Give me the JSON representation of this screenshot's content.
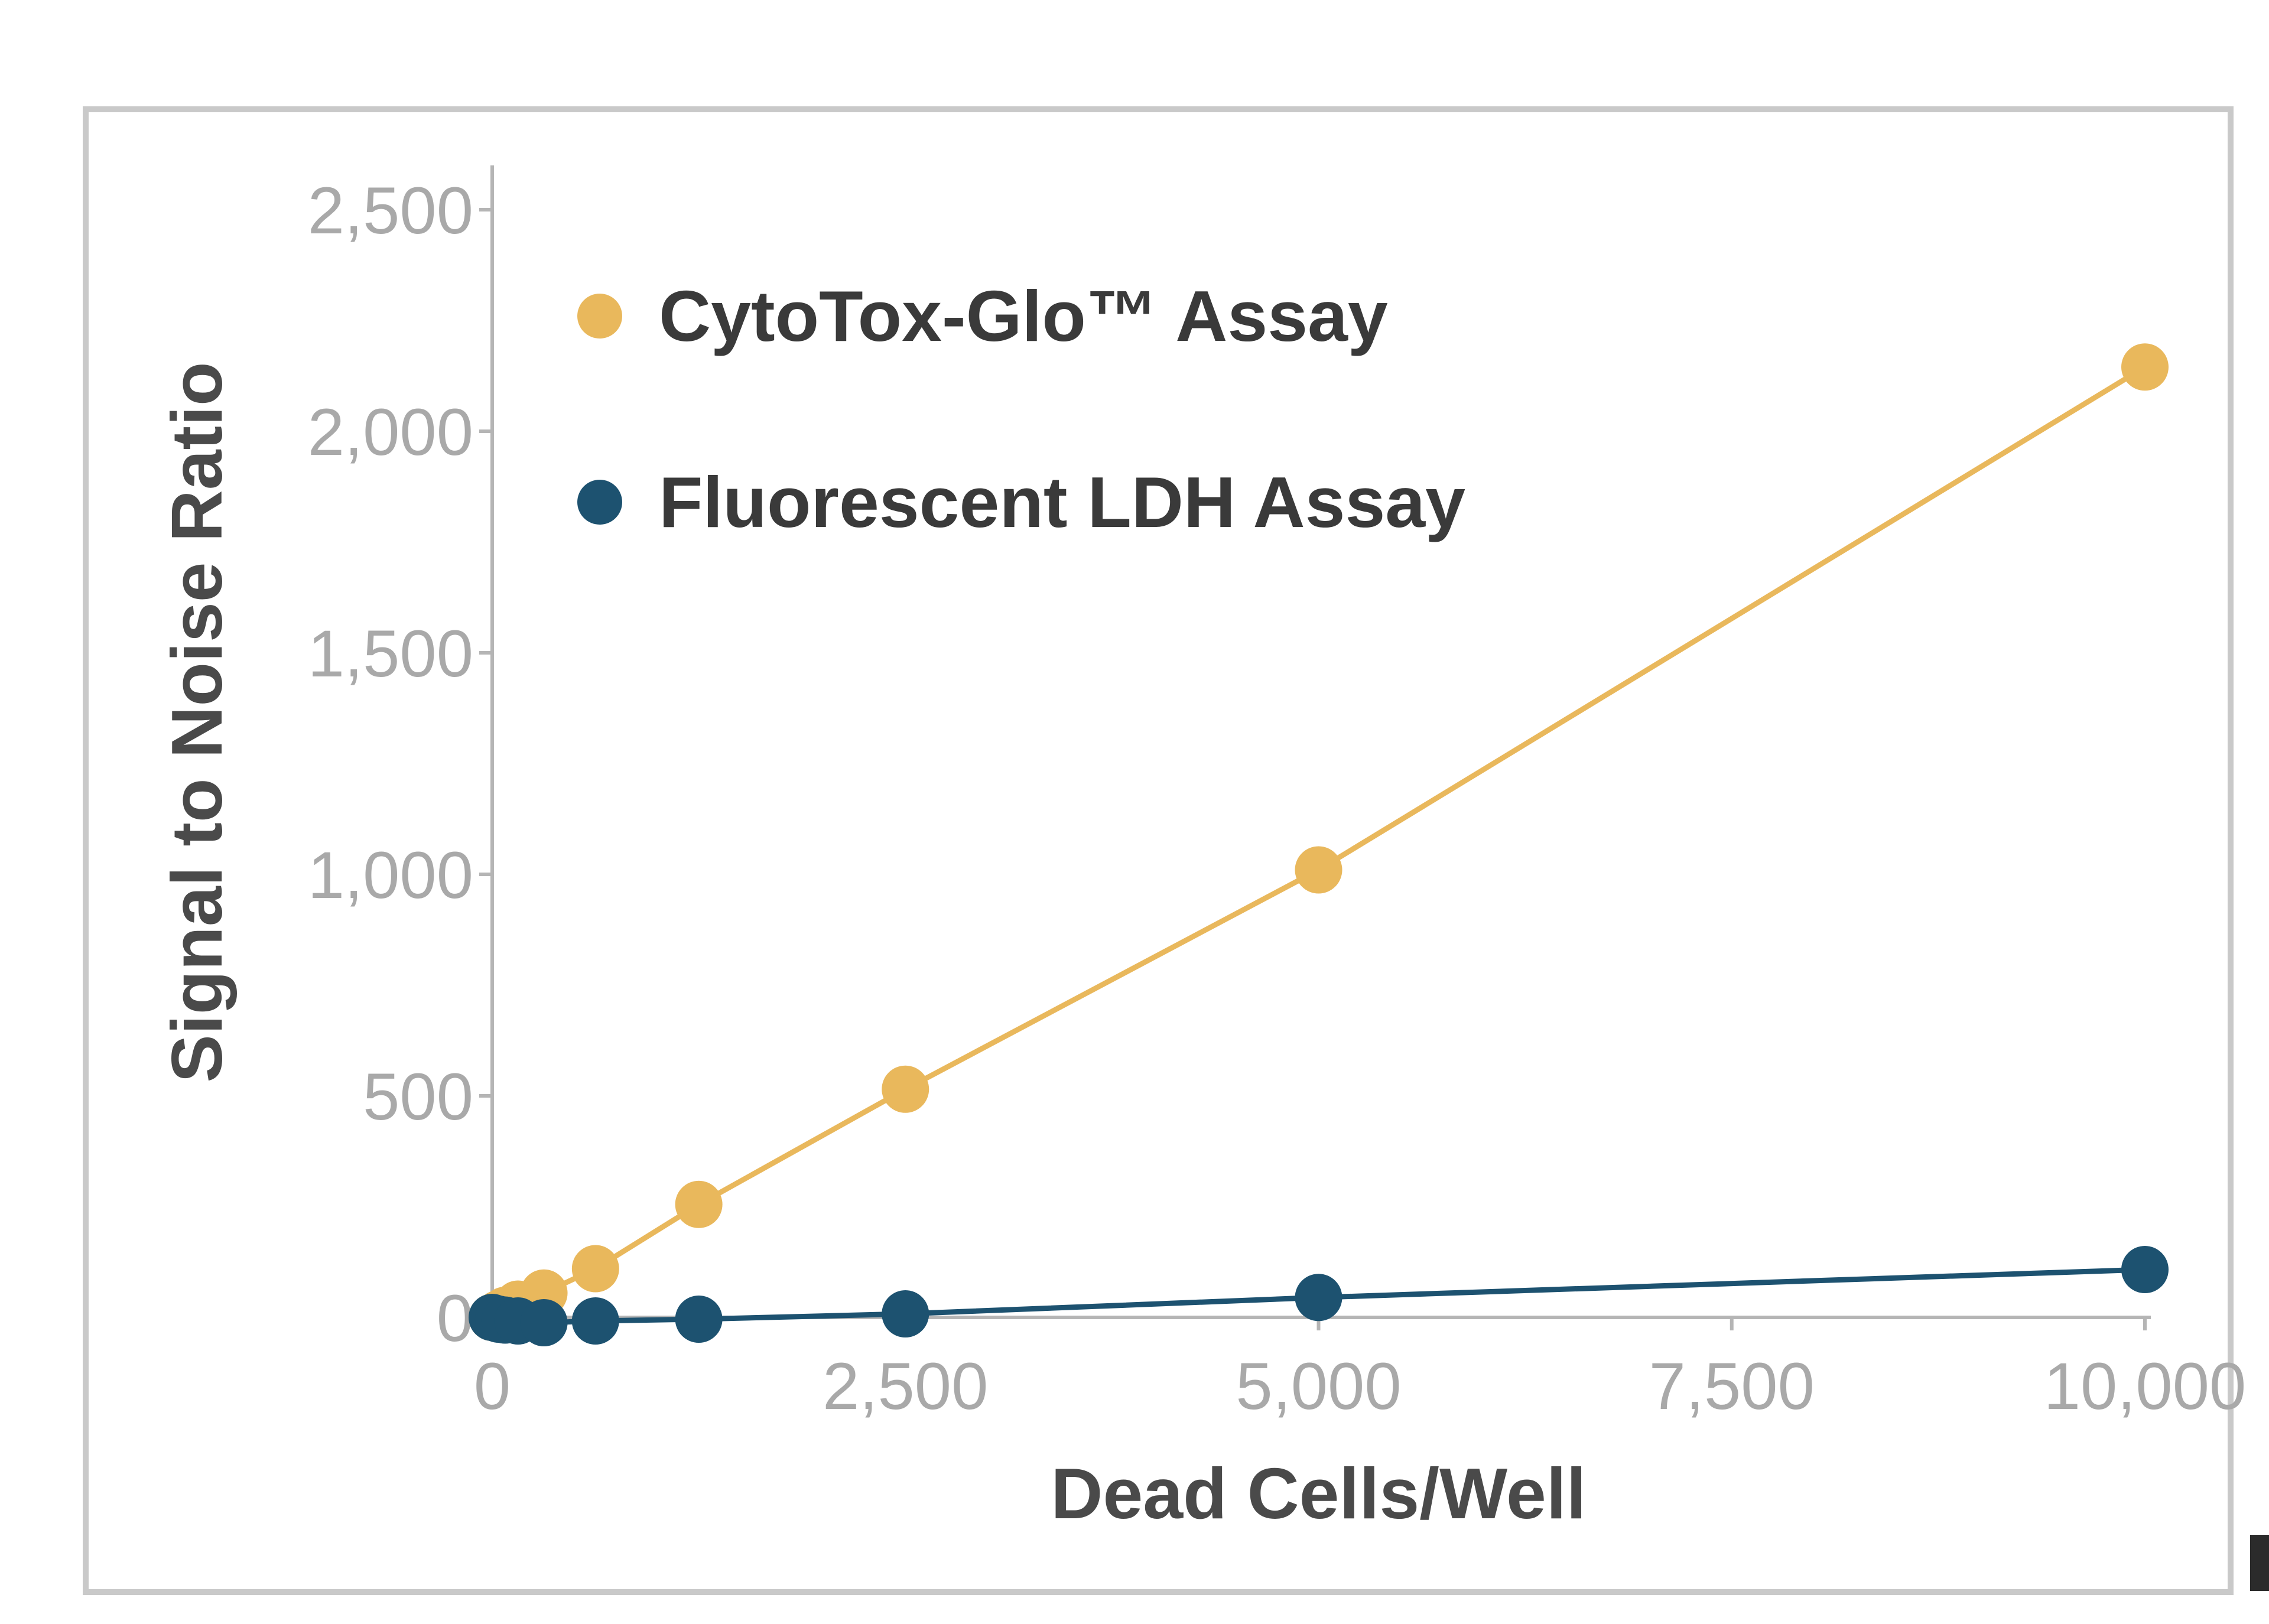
{
  "chart_data": {
    "type": "line",
    "title": "",
    "xlabel": "Dead Cells/Well",
    "ylabel": "Signal to Noise Ratio",
    "xlim": [
      0,
      10000
    ],
    "ylim": [
      0,
      2500
    ],
    "xticks": [
      0,
      2500,
      5000,
      7500,
      10000
    ],
    "yticks": [
      0,
      500,
      1000,
      1500,
      2000,
      2500
    ],
    "xtick_labels": [
      "0",
      "2,500",
      "5,000",
      "7,500",
      "10,000"
    ],
    "ytick_labels": [
      "0",
      "500",
      "1,000",
      "1,500",
      "2,000",
      "2,500"
    ],
    "grid": false,
    "legend_position": "top-left",
    "series": [
      {
        "name": "CytoTox-Glo™ Assay",
        "color": "#e9b85c",
        "x": [
          0,
          39,
          78,
          156,
          313,
          625,
          1250,
          2500,
          5000,
          10000
        ],
        "y": [
          0,
          8,
          16,
          30,
          55,
          110,
          255,
          515,
          1010,
          2145
        ]
      },
      {
        "name": "Fluorescent LDH Assay",
        "color": "#1d5270",
        "x": [
          0,
          39,
          78,
          156,
          313,
          625,
          1250,
          2500,
          5000,
          10000
        ],
        "y": [
          0,
          -4,
          -6,
          -8,
          -12,
          -8,
          -4,
          8,
          45,
          108
        ]
      }
    ]
  }
}
